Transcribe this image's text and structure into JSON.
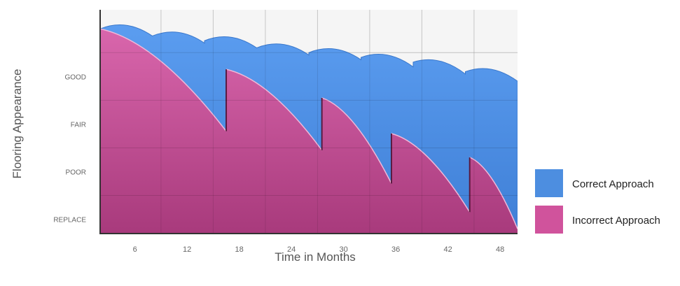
{
  "chart_data": {
    "type": "area",
    "xlabel": "Time in Months",
    "ylabel": "Flooring Appearance",
    "x_ticks": [
      "6",
      "12",
      "18",
      "24",
      "30",
      "36",
      "42",
      "48"
    ],
    "y_ticks": [
      "GOOD",
      "FAIR",
      "POOR",
      "REPLACE"
    ],
    "y_scale_note": "GOOD=3, FAIR=2, POOR=1, REPLACE=0",
    "xlim": [
      2,
      50
    ],
    "ylim": [
      -0.3,
      4.4
    ],
    "legend_position": "right",
    "grid": true,
    "series": [
      {
        "name": "Correct Approach",
        "color": "#4d8ee0",
        "cycles": [
          [
            2,
            8,
            4.0,
            3.85
          ],
          [
            8,
            14,
            3.85,
            3.7
          ],
          [
            14,
            20,
            3.75,
            3.6
          ],
          [
            20,
            26,
            3.6,
            3.45
          ],
          [
            26,
            32,
            3.5,
            3.35
          ],
          [
            32,
            38,
            3.4,
            3.2
          ],
          [
            38,
            44,
            3.3,
            3.05
          ],
          [
            44,
            50,
            3.1,
            2.9
          ]
        ],
        "bump_height": 0.3
      },
      {
        "name": "Incorrect Approach",
        "color": "#d0539c",
        "cycles": [
          [
            2,
            16.5,
            4.0,
            1.85
          ],
          [
            16.5,
            27.5,
            3.15,
            1.45
          ],
          [
            27.5,
            35.5,
            2.55,
            0.75
          ],
          [
            35.5,
            44.5,
            1.8,
            0.15
          ],
          [
            44.5,
            50,
            1.3,
            -0.2
          ]
        ]
      }
    ]
  }
}
